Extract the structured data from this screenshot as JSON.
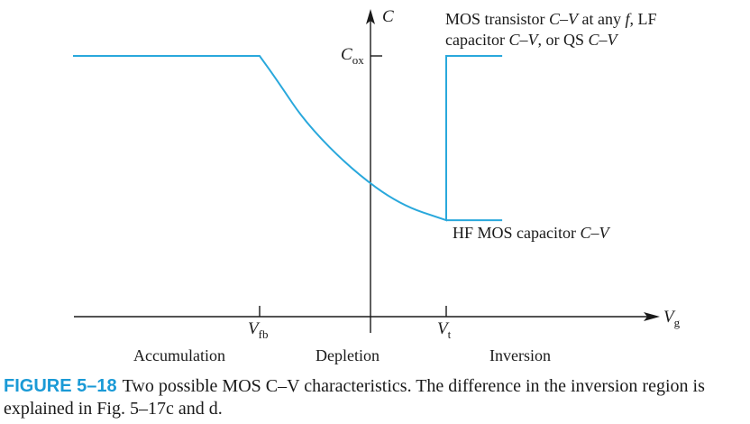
{
  "chart_data": {
    "type": "line",
    "title": "Two possible MOS C–V characteristics",
    "xlabel": {
      "symbol": "V",
      "sub": "g"
    },
    "ylabel": {
      "symbol": "C"
    },
    "xticks": [
      {
        "symbol": "V",
        "sub": "fb"
      },
      {
        "symbol": "V",
        "sub": "t"
      }
    ],
    "yticks": [
      {
        "symbol": "C",
        "sub": "ox"
      }
    ],
    "regions": [
      "Accumulation",
      "Depletion",
      "Inversion"
    ],
    "series": [
      {
        "name": "MOS transistor C–V at any f, LF capacitor C–V, or QS C–V",
        "label_lines": [
          [
            "MOS transistor ",
            {
              "i": "C–V"
            },
            " at any ",
            {
              "i": "f"
            },
            ", LF"
          ],
          [
            "capacitor ",
            {
              "i": "C–V"
            },
            ", or QS ",
            {
              "i": "C–V"
            }
          ]
        ],
        "color": "#29a8dc",
        "points": [
          [
            -1.0,
            1.0
          ],
          [
            0.0,
            1.0
          ],
          [
            0.1,
            0.9
          ],
          [
            0.25,
            0.74
          ],
          [
            0.5,
            0.56
          ],
          [
            0.75,
            0.43
          ],
          [
            1.0,
            0.37
          ],
          [
            1.0,
            1.0
          ],
          [
            1.3,
            1.0
          ]
        ]
      },
      {
        "name": "HF MOS capacitor C–V",
        "label_lines": [
          [
            "HF MOS capacitor ",
            {
              "i": "C–V"
            }
          ]
        ],
        "color": "#29a8dc",
        "points": [
          [
            1.0,
            0.37
          ],
          [
            1.3,
            0.37
          ]
        ]
      }
    ]
  },
  "caption": {
    "label": "FIGURE 5–18",
    "text": "Two possible MOS C–V characteristics. The difference in the inversion region is explained in Fig. 5–17c and d."
  }
}
